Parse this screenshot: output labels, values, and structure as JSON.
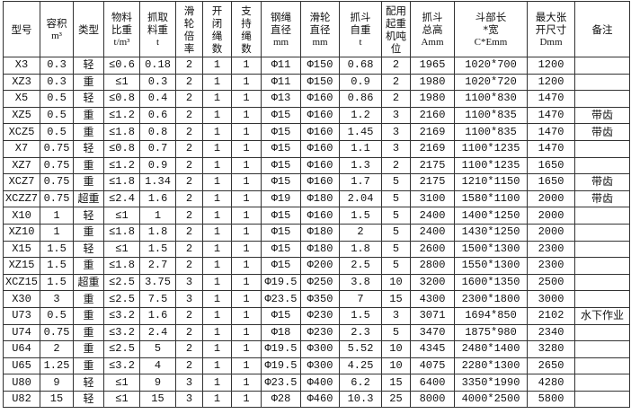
{
  "table": {
    "headers": [
      {
        "l1": "型号",
        "l2": ""
      },
      {
        "l1": "容积",
        "l2": "m³"
      },
      {
        "l1": "类型",
        "l2": ""
      },
      {
        "l1": "物料比重",
        "l2": "t/m³"
      },
      {
        "l1": "抓取料重",
        "l2": "t"
      },
      {
        "l1": "滑轮倍率",
        "l2": ""
      },
      {
        "l1": "开闭绳数",
        "l2": ""
      },
      {
        "l1": "支持绳数",
        "l2": ""
      },
      {
        "l1": "钢绳直径",
        "l2": "mm"
      },
      {
        "l1": "滑轮直径",
        "l2": "mm"
      },
      {
        "l1": "抓斗自重",
        "l2": "t"
      },
      {
        "l1": "配用起重机吨位",
        "l2": ""
      },
      {
        "l1": "抓斗总高",
        "l2": "Amm"
      },
      {
        "l1": "斗部长*宽",
        "l2": "C*Emm"
      },
      {
        "l1": "最大张开尺寸",
        "l2": "Dmm"
      },
      {
        "l1": "备注",
        "l2": ""
      }
    ],
    "rows": [
      [
        "X3",
        "0.3",
        "轻",
        "≤0.6",
        "0.18",
        "2",
        "1",
        "1",
        "Φ11",
        "Φ150",
        "0.68",
        "2",
        "1965",
        "1020*700",
        "1200",
        ""
      ],
      [
        "XZ3",
        "0.3",
        "重",
        "≤1",
        "0.3",
        "2",
        "1",
        "1",
        "Φ11",
        "Φ150",
        "0.9",
        "2",
        "1980",
        "1020*720",
        "1200",
        ""
      ],
      [
        "X5",
        "0.5",
        "轻",
        "≤0.8",
        "0.4",
        "2",
        "1",
        "1",
        "Φ13",
        "Φ160",
        "0.86",
        "2",
        "1980",
        "1100*830",
        "1470",
        ""
      ],
      [
        "XZ5",
        "0.5",
        "重",
        "≤1.2",
        "0.6",
        "2",
        "1",
        "1",
        "Φ15",
        "Φ160",
        "1.2",
        "3",
        "2160",
        "1100*835",
        "1470",
        "带齿"
      ],
      [
        "XCZ5",
        "0.5",
        "重",
        "≤1.8",
        "0.8",
        "2",
        "1",
        "1",
        "Φ15",
        "Φ160",
        "1.45",
        "3",
        "2169",
        "1100*835",
        "1470",
        "带齿"
      ],
      [
        "X7",
        "0.75",
        "轻",
        "≤0.8",
        "0.7",
        "2",
        "1",
        "1",
        "Φ15",
        "Φ160",
        "1.1",
        "3",
        "2169",
        "1100*1235",
        "1470",
        ""
      ],
      [
        "XZ7",
        "0.75",
        "重",
        "≤1.2",
        "0.9",
        "2",
        "1",
        "1",
        "Φ15",
        "Φ160",
        "1.3",
        "2",
        "2175",
        "1100*1235",
        "1650",
        ""
      ],
      [
        "XCZ7",
        "0.75",
        "重",
        "≤1.8",
        "1.34",
        "2",
        "1",
        "1",
        "Φ15",
        "Φ160",
        "1.7",
        "5",
        "2175",
        "1210*1150",
        "1650",
        "带齿"
      ],
      [
        "XCZZ7",
        "0.75",
        "超重",
        "≤2.4",
        "1.6",
        "2",
        "1",
        "1",
        "Φ19",
        "Φ180",
        "2.04",
        "5",
        "3100",
        "1580*1100",
        "2000",
        "带齿"
      ],
      [
        "X10",
        "1",
        "轻",
        "≤1",
        "1",
        "2",
        "1",
        "1",
        "Φ15",
        "Φ160",
        "1.5",
        "5",
        "2400",
        "1400*1250",
        "2000",
        ""
      ],
      [
        "XZ10",
        "1",
        "重",
        "≤1.8",
        "1.8",
        "2",
        "1",
        "1",
        "Φ15",
        "Φ180",
        "2",
        "5",
        "2400",
        "1430*1250",
        "2000",
        ""
      ],
      [
        "X15",
        "1.5",
        "轻",
        "≤1",
        "1.5",
        "2",
        "1",
        "1",
        "Φ15",
        "Φ180",
        "1.8",
        "5",
        "2600",
        "1500*1300",
        "2300",
        ""
      ],
      [
        "XZ15",
        "1.5",
        "重",
        "≤1.8",
        "2.7",
        "2",
        "1",
        "1",
        "Φ15",
        "Φ200",
        "2.5",
        "5",
        "2800",
        "1550*1300",
        "2300",
        ""
      ],
      [
        "XCZ15",
        "1.5",
        "超重",
        "≤2.5",
        "3.75",
        "3",
        "1",
        "1",
        "Φ19.5",
        "Φ250",
        "3.8",
        "10",
        "3200",
        "1600*1350",
        "2500",
        ""
      ],
      [
        "X30",
        "3",
        "重",
        "≤2.5",
        "7.5",
        "3",
        "1",
        "1",
        "Φ23.5",
        "Φ350",
        "7",
        "15",
        "4300",
        "2300*1800",
        "3000",
        ""
      ],
      [
        "U73",
        "0.5",
        "重",
        "≤3.2",
        "1.6",
        "2",
        "1",
        "1",
        "Φ15",
        "Φ230",
        "1.5",
        "3",
        "3071",
        "1694*850",
        "2102",
        "水下作业"
      ],
      [
        "U74",
        "0.75",
        "重",
        "≤3.2",
        "2.4",
        "2",
        "1",
        "1",
        "Φ18",
        "Φ230",
        "2.3",
        "5",
        "3470",
        "1875*980",
        "2340",
        ""
      ],
      [
        "U64",
        "2",
        "重",
        "≤2.5",
        "5",
        "2",
        "1",
        "1",
        "Φ19.5",
        "Φ300",
        "5.52",
        "10",
        "4345",
        "2480*1400",
        "3280",
        ""
      ],
      [
        "U65",
        "1.25",
        "重",
        "≤3.2",
        "4",
        "2",
        "1",
        "1",
        "Φ19.5",
        "Φ300",
        "4.25",
        "10",
        "4075",
        "2280*1300",
        "2650",
        ""
      ],
      [
        "U80",
        "9",
        "轻",
        "≤1",
        "9",
        "3",
        "1",
        "1",
        "Φ23.5",
        "Φ400",
        "6.2",
        "15",
        "6400",
        "3350*1990",
        "4280",
        ""
      ],
      [
        "U82",
        "15",
        "轻",
        "≤1",
        "15",
        "3",
        "1",
        "1",
        "Φ28",
        "Φ460",
        "10.3",
        "25",
        "8000",
        "4000*2500",
        "5800",
        ""
      ]
    ]
  }
}
